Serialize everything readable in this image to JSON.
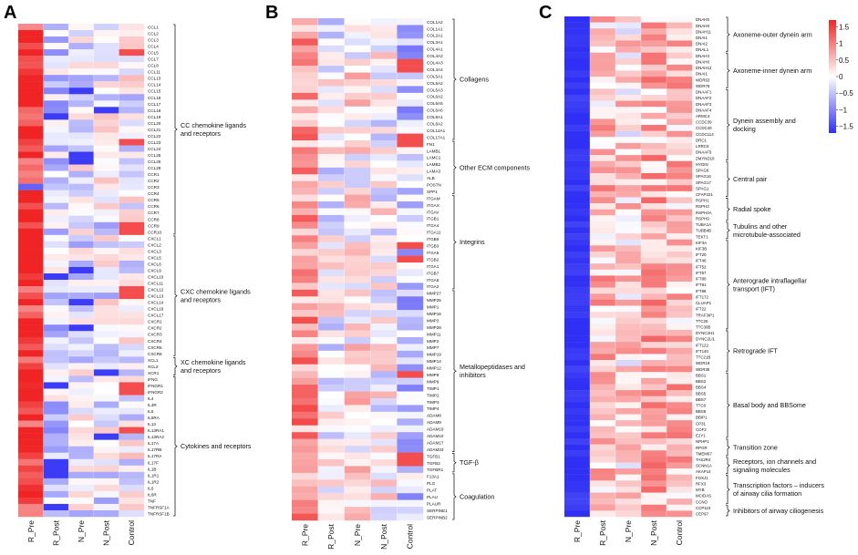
{
  "panels": [
    "A",
    "B",
    "C"
  ],
  "chart_data": [
    {
      "type": "heatmap",
      "panel": "A",
      "columns": [
        "R_Pre",
        "R_Post",
        "N_Pre",
        "N_Post",
        "Control"
      ],
      "rows": [
        "CCL1",
        "CCL2",
        "CCL3",
        "CCL4",
        "CCL5",
        "CCL7",
        "CCL8",
        "CCL11",
        "CCL13",
        "CCL14",
        "CCL15",
        "CCL16",
        "CCL17",
        "CCL18",
        "CCL19",
        "CCL20",
        "CCL21",
        "CCL22",
        "CCL23",
        "CCL24",
        "CCL25",
        "CCL26",
        "CCL28",
        "CCR1",
        "CCR2",
        "CCR3",
        "CCR4",
        "CCR5",
        "CCR6",
        "CCR7",
        "CCR8",
        "CCR9",
        "CCR10",
        "CXCL1",
        "CXCL2",
        "CXCL3",
        "CXCL5",
        "CXCL6",
        "CXCL9",
        "CXCL10",
        "CXCL11",
        "CXCL12",
        "CXCL13",
        "CXCL14",
        "CXCL16",
        "CXCL17",
        "CXCR1",
        "CXCR2",
        "CXCR3",
        "CXCR4",
        "CXCR5",
        "CXCR6",
        "XCL1",
        "XCL2",
        "XCR1",
        "IFNG",
        "IFNGR1",
        "IFNGR2",
        "IL4",
        "IL4R",
        "IL5",
        "IL5RA",
        "IL13",
        "IL13RA1",
        "IL13RA2",
        "IL17A",
        "IL17RB",
        "IL17RA",
        "IL17F",
        "IL1B",
        "IL1R1",
        "IL1R2",
        "IL6",
        "IL6R",
        "TNF",
        "TNFRSF1A",
        "TNFRSF1B"
      ],
      "groups": [
        {
          "label": "CC chemokine ligands\nand receptors",
          "start": 0,
          "end": 32
        },
        {
          "label": "CXC chemokine ligands\nand receptors",
          "start": 33,
          "end": 51
        },
        {
          "label": "XC chemokine ligands\nand receptors",
          "start": 52,
          "end": 54
        },
        {
          "label": "Cytokines and receptors",
          "start": 55,
          "end": 76
        }
      ]
    },
    {
      "type": "heatmap",
      "panel": "B",
      "columns": [
        "R_Pre",
        "R_Post",
        "N_Pre",
        "N_Post",
        "Control"
      ],
      "rows": [
        "COL1A2",
        "COL1A1",
        "COL2A1",
        "COL3A1",
        "COL4A1",
        "COL4A2",
        "COL4A3",
        "COL4A4",
        "COL5A1",
        "COL5A2",
        "COL5A3",
        "COL6A2",
        "COL6A5",
        "COL6A6",
        "COL8A1",
        "COL8A2",
        "COL12A1",
        "COL17A1",
        "FN1",
        "LAMB1",
        "LAMC1",
        "LAMB2",
        "LAMA3",
        "ALB",
        "POSTN",
        "SPP1",
        "ITGAM",
        "ITGAX",
        "ITGAV",
        "ITGB1",
        "ITGA4",
        "ITGA11",
        "ITGB6",
        "ITGB3",
        "ITGA5",
        "ITGB2",
        "ITGA1",
        "ITGB7",
        "ITGA8",
        "ITGA2",
        "MMP27",
        "MMP25",
        "MMP1",
        "MMP16",
        "MMP3",
        "MMP28",
        "MMP11",
        "MMP2",
        "MMP7",
        "MMP19",
        "MMP14",
        "MMP12",
        "MMP8",
        "MMP9",
        "TIMP1",
        "TIMP2",
        "TIMP3",
        "TIMP4",
        "ADAM8",
        "ADAM9",
        "ADAM19",
        "ADAM10",
        "ADAM17",
        "ADAM33",
        "TGFB1",
        "TGFB2",
        "TGFBR1",
        "F13A1",
        "PLG",
        "PLAT",
        "PLAU",
        "PLAUR",
        "SERPINE1",
        "SERPINB2"
      ],
      "groups": [
        {
          "label": "Collagens",
          "start": 0,
          "end": 17
        },
        {
          "label": "Other ECM components",
          "start": 18,
          "end": 25
        },
        {
          "label": "Integrins",
          "start": 26,
          "end": 39
        },
        {
          "label": "Metallopeptidases and\ninhibitors",
          "start": 40,
          "end": 63
        },
        {
          "label": "TGF-β",
          "start": 64,
          "end": 66
        },
        {
          "label": "Coagulation",
          "start": 67,
          "end": 73
        }
      ]
    },
    {
      "type": "heatmap",
      "panel": "C",
      "columns": [
        "R_Pre",
        "R_Post",
        "N_Pre",
        "N_Post",
        "Control"
      ],
      "rows": [
        "DNAH5",
        "DNAH9",
        "DNAH11",
        "DNAI1",
        "DNAI2",
        "DNAL1",
        "DNAH3",
        "DNAH6",
        "DNAH12",
        "DNAI1",
        "WDR63",
        "WDR78",
        "DNAAF1",
        "DNAAF2",
        "DNAAF3",
        "DNAAF4",
        "ARMC4",
        "CCDC39",
        "CCDC40",
        "CCDC114",
        "DRC1",
        "LRRC6",
        "DNAAF5",
        "ZMYND10",
        "HYDIN",
        "SPAG6",
        "SPAG16",
        "SPAG17",
        "SPAG1",
        "CFAP221",
        "RSPH1",
        "RSPH3",
        "RSPH4A",
        "RSPH9",
        "TUBA1A",
        "TUBB4B",
        "TEKT1",
        "KIF3A",
        "KIF3B",
        "IFT20",
        "IFT46",
        "IFT52",
        "IFT57",
        "IFT80",
        "IFT81",
        "IFT88",
        "IFT172",
        "CLUAP1",
        "IFT22",
        "TRAF3IP1",
        "TTC26",
        "TTC30B",
        "DYNC2H1",
        "DYNC2LI1",
        "IFT122",
        "IFT140",
        "TTC21B",
        "WDR19",
        "WDR35",
        "BBS1",
        "BBS2",
        "BBS4",
        "BBS5",
        "BBS7",
        "TTC8",
        "BBS9",
        "BBIP1",
        "CP31",
        "COF2",
        "E2Y1",
        "NPHP1",
        "RPGR",
        "TMEM67",
        "TAS2R4",
        "SCNN1A",
        "AKAP14",
        "FOXJ1",
        "RFX3",
        "MYB",
        "MCIDAS",
        "CCNO",
        "CCP110",
        "CEP97"
      ],
      "groups": [
        {
          "label": "Axoneme-outer dynein arm",
          "start": 0,
          "end": 5
        },
        {
          "label": "Axoneme-inner dynein arm",
          "start": 6,
          "end": 11
        },
        {
          "label": "Dynein assembly and\ndocking",
          "start": 12,
          "end": 23
        },
        {
          "label": "Central pair",
          "start": 24,
          "end": 29
        },
        {
          "label": "Radial spoke",
          "start": 30,
          "end": 33
        },
        {
          "label": "Tubulins and other\nmicrotubule-associated",
          "start": 34,
          "end": 36
        },
        {
          "label": "Anterograde intraflagellar\ntransport (IFT)",
          "start": 37,
          "end": 51
        },
        {
          "label": "Retrograde IFT",
          "start": 52,
          "end": 58
        },
        {
          "label": "Basal body and BBSome",
          "start": 59,
          "end": 69
        },
        {
          "label": "Transition zone",
          "start": 70,
          "end": 72
        },
        {
          "label": "Receptors, ion channels and\nsignaling molecules",
          "start": 73,
          "end": 75
        },
        {
          "label": "Transcription factors – inducers\nof airway cilia formation",
          "start": 76,
          "end": 80
        },
        {
          "label": "Inhibitors of airway ciliogenesis",
          "start": 81,
          "end": 82
        }
      ],
      "colorbar": {
        "ticks": [
          "1.5",
          "1",
          "0.5",
          "0",
          "−0.5",
          "−1",
          "−1.5"
        ],
        "range": [
          -1.7,
          1.7
        ]
      }
    }
  ],
  "colors": {
    "low": "#2f2ff5",
    "mid": "#ffffff",
    "high": "#f02424"
  }
}
